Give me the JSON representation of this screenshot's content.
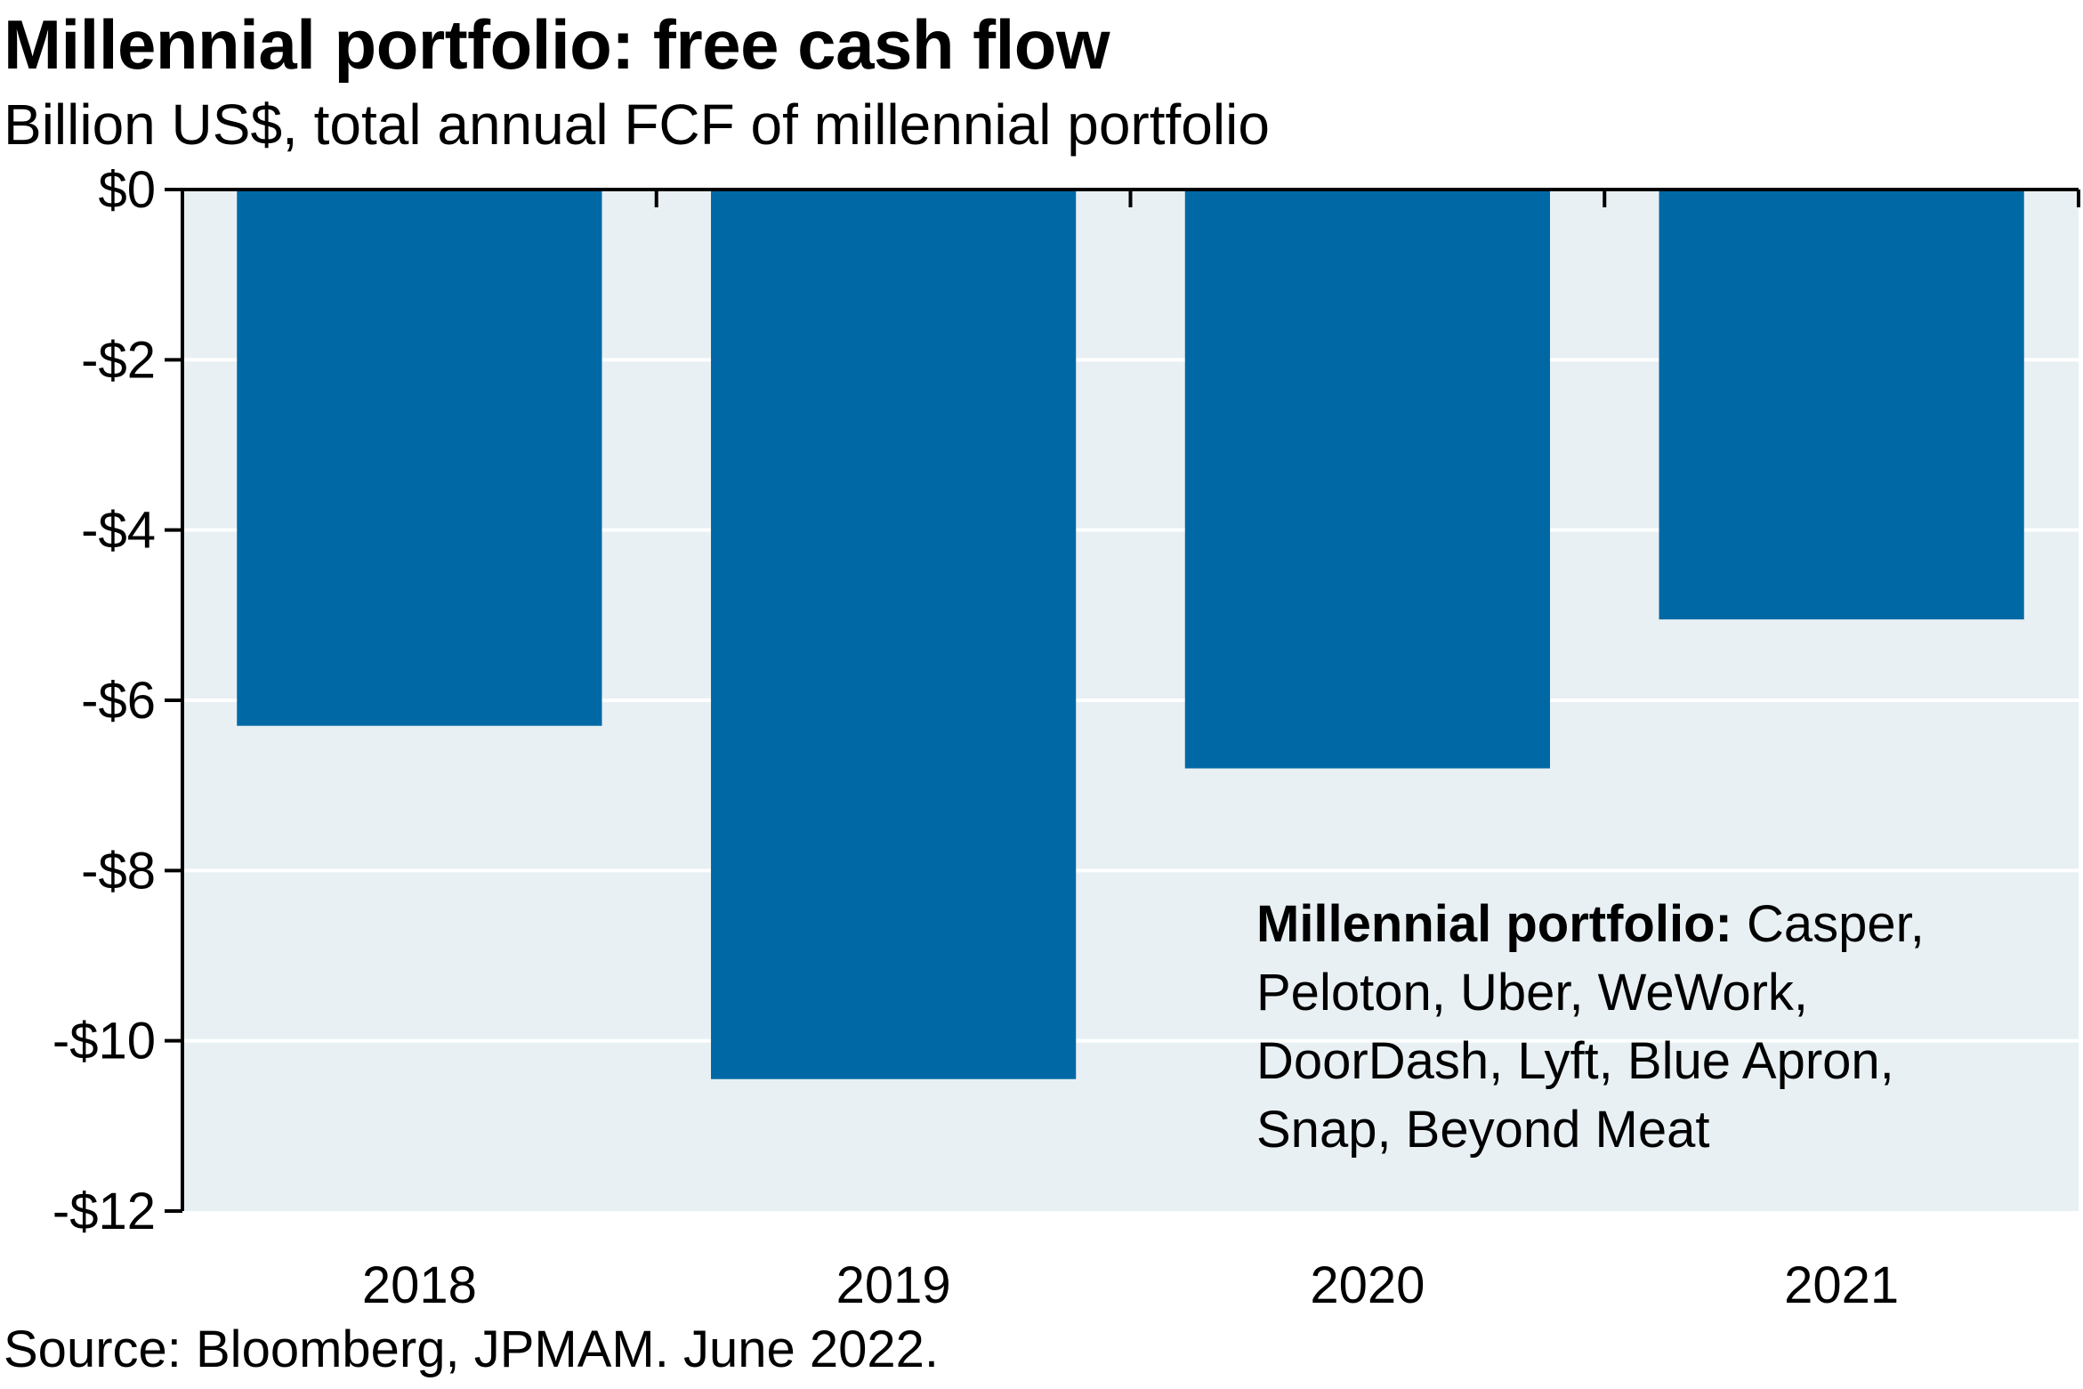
{
  "title": "Millennial portfolio: free cash flow",
  "subtitle": "Billion US$, total annual FCF of millennial portfolio",
  "source": "Source: Bloomberg, JPMAM. June 2022.",
  "annotation": {
    "bold": "Millennial portfolio:",
    "text": " Casper, Peloton, Uber, WeWork, DoorDash, Lyft, Blue Apron, Snap, Beyond Meat"
  },
  "colors": {
    "bar": "#0069A5",
    "plot_background": "#E8F0F3",
    "gridline": "#FFFFFF"
  },
  "chart_data": {
    "type": "bar",
    "categories": [
      "2018",
      "2019",
      "2020",
      "2021"
    ],
    "values": [
      -6.3,
      -10.45,
      -6.8,
      -5.05
    ],
    "title": "Millennial portfolio: free cash flow",
    "ylabel": "Billion US$",
    "ylim": [
      -12,
      0
    ],
    "yticks": [
      0,
      -2,
      -4,
      -6,
      -8,
      -10,
      -12
    ],
    "ytick_labels": [
      "$0",
      "-$2",
      "-$4",
      "-$6",
      "-$8",
      "-$10",
      "-$12"
    ],
    "grid": true,
    "legend": "none"
  }
}
